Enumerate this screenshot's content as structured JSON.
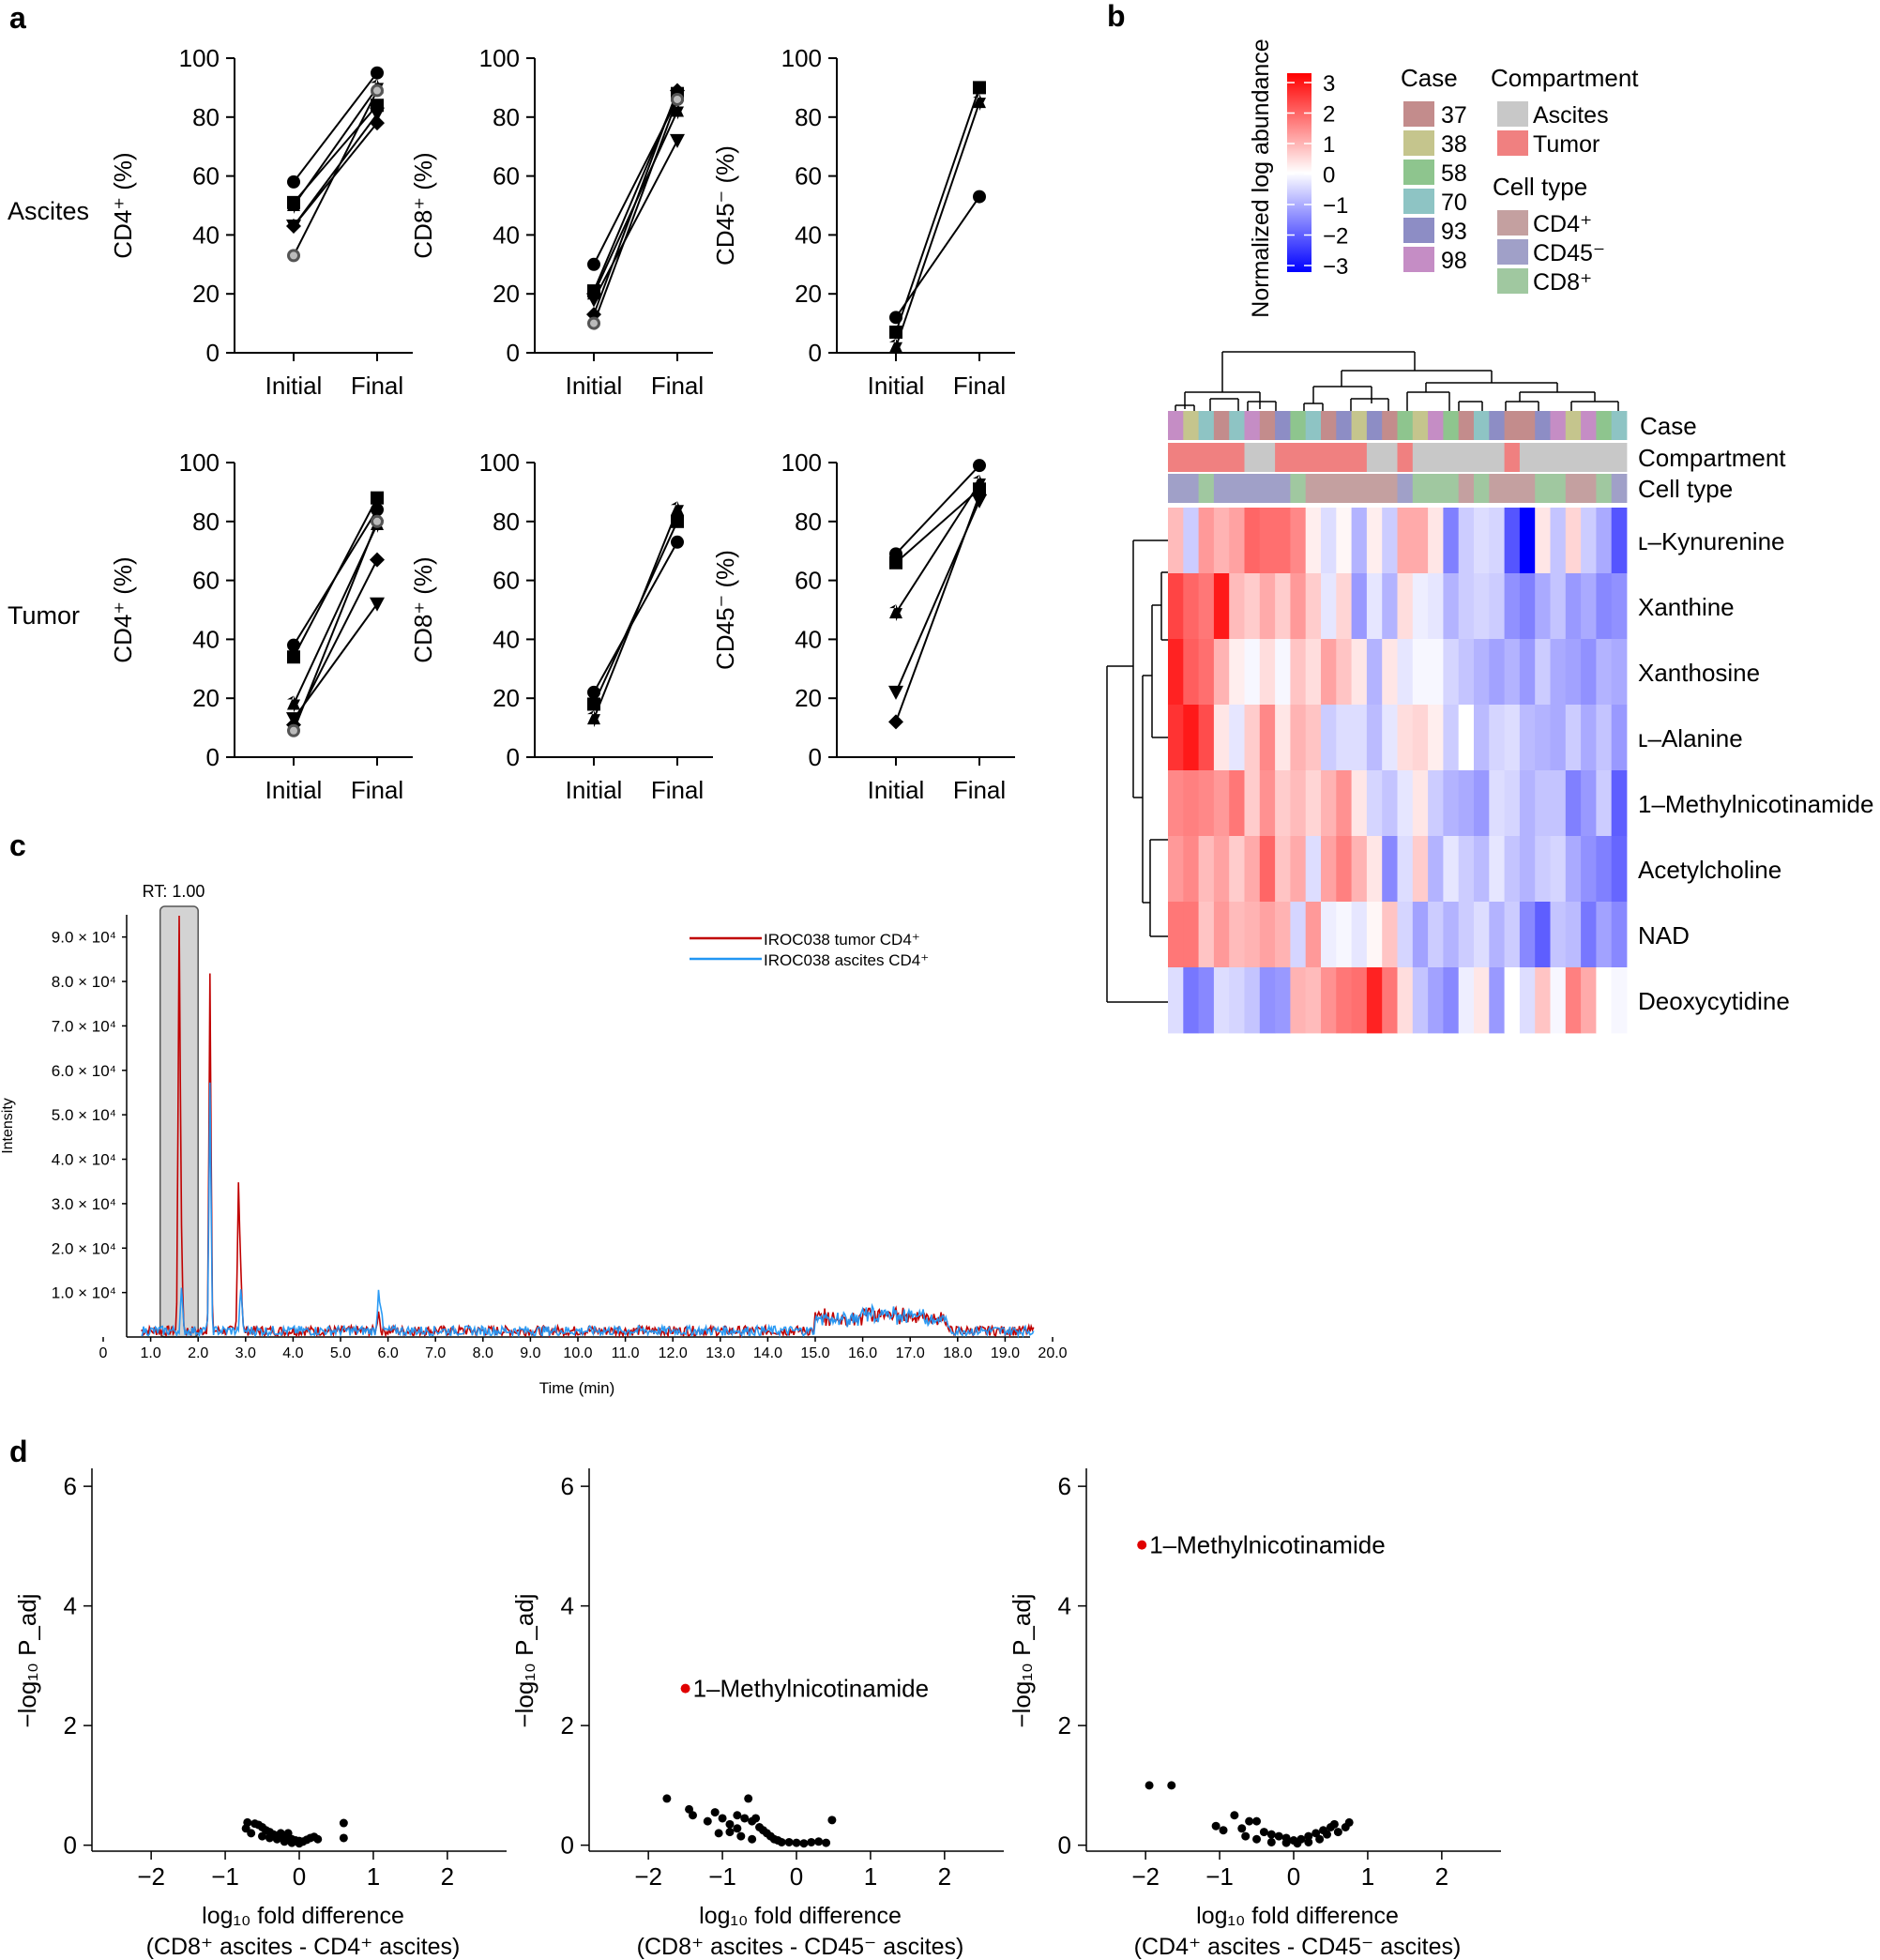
{
  "panel_labels": {
    "a": "a",
    "b": "b",
    "c": "c",
    "d": "d"
  },
  "chart_data": [
    {
      "type": "line",
      "panel": "a",
      "row_labels": [
        "Ascites",
        "Tumor"
      ],
      "x_categories": [
        "Initial",
        "Final"
      ],
      "ylim": [
        0,
        100
      ],
      "yticks": [
        "0",
        "20",
        "40",
        "60",
        "80",
        "100"
      ],
      "plots": [
        {
          "row": 0,
          "col": 0,
          "ylabel": "CD4⁺ (%)",
          "pairs": [
            [
              58,
              95
            ],
            [
              51,
              84
            ],
            [
              50,
              90
            ],
            [
              43,
              81
            ],
            [
              43,
              78
            ],
            [
              33,
              89
            ]
          ]
        },
        {
          "row": 0,
          "col": 1,
          "ylabel": "CD8⁺ (%)",
          "pairs": [
            [
              30,
              86
            ],
            [
              21,
              88
            ],
            [
              20,
              82
            ],
            [
              18,
              72
            ],
            [
              13,
              89
            ],
            [
              10,
              86
            ]
          ]
        },
        {
          "row": 0,
          "col": 2,
          "ylabel": "CD45⁻ (%)",
          "pairs": [
            [
              12,
              53
            ],
            [
              7,
              90
            ],
            [
              2,
              85
            ]
          ]
        },
        {
          "row": 1,
          "col": 0,
          "ylabel": "CD4⁺ (%)",
          "pairs": [
            [
              38,
              84
            ],
            [
              34,
              88
            ],
            [
              18,
              79
            ],
            [
              13,
              52
            ],
            [
              11,
              67
            ],
            [
              9,
              80
            ]
          ]
        },
        {
          "row": 1,
          "col": 1,
          "ylabel": "CD8⁺ (%)",
          "pairs": [
            [
              22,
              73
            ],
            [
              18,
              80
            ],
            [
              13,
              84
            ]
          ]
        },
        {
          "row": 1,
          "col": 2,
          "ylabel": "CD45⁻ (%)",
          "pairs": [
            [
              69,
              99
            ],
            [
              66,
              91
            ],
            [
              49,
              93
            ],
            [
              22,
              87
            ],
            [
              12,
              89
            ]
          ]
        }
      ]
    },
    {
      "type": "heatmap",
      "panel": "b",
      "colorbar": {
        "title": "Normalized log abundance",
        "ticks": [
          "3",
          "2",
          "1",
          "0",
          "−1",
          "−2",
          "−3"
        ],
        "colors": [
          "#ff0000",
          "#ffffff",
          "#0000ff"
        ]
      },
      "legend": {
        "case_title": "Case",
        "cases": [
          "37",
          "38",
          "58",
          "70",
          "93",
          "98"
        ],
        "case_colors": [
          "#c38c8c",
          "#c5c58d",
          "#8ec58e",
          "#8ec4c4",
          "#8d8dc5",
          "#c58dc5"
        ],
        "compartment_title": "Compartment",
        "compartments": [
          "Ascites",
          "Tumor"
        ],
        "compartment_colors": [
          "#c8c8c8",
          "#f08080"
        ],
        "celltype_title": "Cell type",
        "celltypes": [
          "CD4⁺",
          "CD45⁻",
          "CD8⁺"
        ],
        "celltype_colors": [
          "#c4a0a0",
          "#a0a0c8",
          "#a0c8a0"
        ]
      },
      "annotation_rows": [
        "Case",
        "Compartment",
        "Cell type"
      ],
      "rows": [
        "ʟ–Kynurenine",
        "Xanthine",
        "Xanthosine",
        "ʟ–Alanine",
        "1–Methylnicotinamide",
        "Acetylcholine",
        "NAD",
        "Deoxycytidine"
      ],
      "case_annotation": [
        5,
        1,
        3,
        0,
        3,
        5,
        0,
        4,
        2,
        3,
        0,
        4,
        1,
        4,
        0,
        2,
        1,
        5,
        2,
        0,
        3,
        4,
        0,
        0,
        4,
        5,
        1,
        5,
        2,
        3
      ],
      "compartment_annotation": [
        1,
        1,
        1,
        1,
        1,
        0,
        0,
        1,
        1,
        1,
        1,
        1,
        1,
        0,
        0,
        1,
        0,
        0,
        0,
        0,
        0,
        0,
        1,
        0,
        0,
        0,
        0,
        0,
        0,
        0
      ],
      "celltype_annotation": [
        1,
        1,
        2,
        1,
        1,
        1,
        1,
        1,
        2,
        0,
        0,
        0,
        0,
        0,
        0,
        1,
        2,
        2,
        2,
        0,
        2,
        0,
        0,
        0,
        2,
        2,
        0,
        0,
        2,
        1
      ],
      "values": [
        [
          0.8,
          -0.6,
          1.2,
          0.9,
          1.1,
          1.8,
          1.7,
          1.7,
          1.4,
          0.2,
          -0.4,
          0.1,
          -0.9,
          0.2,
          -0.6,
          1.0,
          1.0,
          0.3,
          -1.5,
          -0.6,
          -0.4,
          -0.5,
          -2.0,
          -3.0,
          0.3,
          -0.7,
          0.5,
          -0.6,
          -1.0,
          -2.0
        ],
        [
          2.2,
          1.8,
          1.6,
          2.7,
          0.8,
          0.6,
          1.0,
          0.6,
          1.2,
          0.6,
          -0.3,
          0.5,
          -1.2,
          -0.3,
          -0.9,
          0.4,
          -0.2,
          -0.3,
          -0.9,
          -0.6,
          -0.5,
          -0.6,
          -1.3,
          -1.5,
          -1.0,
          -0.7,
          -1.2,
          -1.0,
          -1.4,
          -1.3
        ],
        [
          2.6,
          1.9,
          1.7,
          0.9,
          0.2,
          -0.1,
          0.4,
          -0.1,
          0.7,
          0.4,
          1.1,
          0.7,
          0.3,
          -0.9,
          0.3,
          -0.3,
          -0.1,
          -0.1,
          -0.5,
          -0.7,
          -0.9,
          -1.1,
          -0.9,
          -1.2,
          -0.6,
          -1.0,
          -1.1,
          -1.3,
          -0.9,
          -1.0
        ],
        [
          2.4,
          2.7,
          2.1,
          0.3,
          -0.3,
          0.6,
          1.4,
          0.3,
          0.9,
          0.7,
          -0.6,
          -0.4,
          -0.4,
          -0.8,
          -0.3,
          0.4,
          0.5,
          0.2,
          -0.6,
          0.0,
          -0.8,
          -0.5,
          -0.4,
          -0.8,
          -0.9,
          -1.0,
          -0.6,
          -1.0,
          -0.7,
          -1.2
        ],
        [
          1.4,
          1.5,
          1.4,
          1.2,
          1.6,
          0.6,
          1.3,
          0.6,
          0.8,
          0.5,
          0.9,
          1.3,
          0.3,
          -0.5,
          -0.7,
          -0.3,
          0.3,
          -0.6,
          -0.9,
          -1.0,
          -1.2,
          -0.4,
          -0.5,
          -0.9,
          -0.7,
          -0.7,
          -1.5,
          -1.2,
          -0.6,
          -1.9
        ],
        [
          1.2,
          1.4,
          0.8,
          1.1,
          0.6,
          1.0,
          1.8,
          0.7,
          1.0,
          -0.4,
          1.1,
          1.5,
          0.9,
          0.3,
          -1.4,
          -0.4,
          0.6,
          -0.9,
          -0.3,
          -0.6,
          -0.8,
          -0.3,
          -0.7,
          -0.9,
          -0.6,
          -0.5,
          -1.0,
          -1.3,
          -1.5,
          -1.8
        ],
        [
          1.6,
          1.6,
          0.7,
          1.2,
          0.8,
          0.9,
          1.1,
          0.9,
          -0.5,
          1.2,
          -0.2,
          -0.1,
          -0.3,
          0.1,
          0.7,
          -0.5,
          -1.1,
          -0.6,
          -0.9,
          -0.6,
          -0.4,
          -0.9,
          -0.6,
          -1.4,
          -1.9,
          -0.7,
          -0.8,
          -1.6,
          -1.1,
          -1.4
        ],
        [
          -0.4,
          -1.6,
          -1.4,
          -0.4,
          -0.5,
          -0.7,
          -1.3,
          -1.2,
          0.9,
          0.8,
          1.3,
          1.6,
          1.7,
          2.6,
          1.6,
          0.4,
          -0.7,
          -1.1,
          -1.4,
          -0.2,
          0.3,
          -1.2,
          0.0,
          -0.4,
          0.7,
          -0.1,
          1.5,
          1.0,
          0.0,
          -0.1
        ]
      ]
    },
    {
      "type": "line",
      "panel": "c",
      "rt_label": "RT: 1.00",
      "xlabel": "Time (min)",
      "ylabel": "Intensity",
      "xlim": [
        0,
        20
      ],
      "xticks": [
        "0",
        "1.0",
        "2.0",
        "3.0",
        "4.0",
        "5.0",
        "6.0",
        "7.0",
        "8.0",
        "9.0",
        "10.0",
        "11.0",
        "12.0",
        "13.0",
        "14.0",
        "15.0",
        "16.0",
        "17.0",
        "18.0",
        "19.0",
        "20.0"
      ],
      "ylim": [
        0,
        95000
      ],
      "ytick_values": [
        10000,
        20000,
        30000,
        40000,
        50000,
        60000,
        70000,
        80000,
        90000
      ],
      "ytick_labels": [
        "1.0 × 10⁴",
        "2.0 × 10⁴",
        "3.0 × 10⁴",
        "4.0 × 10⁴",
        "5.0 × 10⁴",
        "6.0 × 10⁴",
        "7.0 × 10⁴",
        "8.0 × 10⁴",
        "9.0 × 10⁴"
      ],
      "highlight_range": [
        1.2,
        2.0
      ],
      "series": [
        {
          "name": "IROC038 tumor CD4⁺",
          "color": "#c00000",
          "peaks": [
            [
              1.6,
              93000
            ],
            [
              1.65,
              18000
            ],
            [
              2.25,
              80000
            ],
            [
              2.85,
              33000
            ],
            [
              2.9,
              13000
            ],
            [
              5.8,
              5000
            ]
          ]
        },
        {
          "name": "IROC038 ascites CD4⁺",
          "color": "#2196f3",
          "peaks": [
            [
              1.65,
              9000
            ],
            [
              2.25,
              55000
            ],
            [
              2.9,
              10000
            ],
            [
              5.8,
              9500
            ],
            [
              5.85,
              5000
            ]
          ]
        }
      ]
    },
    {
      "type": "scatter",
      "panel": "d",
      "xlim": [
        -2.8,
        2.8
      ],
      "ylim": [
        -0.1,
        6.3
      ],
      "xticks": [
        "−2",
        "−1",
        "0",
        "1",
        "2"
      ],
      "yticks": [
        "0",
        "2",
        "4",
        "6"
      ],
      "ylabel": "−log₁₀ P_adj",
      "plots": [
        {
          "xlabel_1": "log₁₀ fold difference",
          "xlabel_2": "(CD8⁺ ascites - CD4⁺ ascites)",
          "points": [
            [
              -0.7,
              0.38
            ],
            [
              -0.6,
              0.36
            ],
            [
              -0.55,
              0.34
            ],
            [
              -0.5,
              0.3
            ],
            [
              -0.72,
              0.28
            ],
            [
              -0.45,
              0.25
            ],
            [
              -0.4,
              0.22
            ],
            [
              -0.65,
              0.2
            ],
            [
              -0.35,
              0.18
            ],
            [
              -0.3,
              0.16
            ],
            [
              -0.25,
              0.2
            ],
            [
              -0.2,
              0.14
            ],
            [
              -0.15,
              0.12
            ],
            [
              -0.1,
              0.1
            ],
            [
              -0.05,
              0.08
            ],
            [
              0.0,
              0.07
            ],
            [
              0.05,
              0.06
            ],
            [
              0.1,
              0.09
            ],
            [
              0.15,
              0.12
            ],
            [
              0.2,
              0.14
            ],
            [
              -0.3,
              0.1
            ],
            [
              -0.2,
              0.06
            ],
            [
              -0.1,
              0.04
            ],
            [
              0.0,
              0.03
            ],
            [
              -0.5,
              0.15
            ],
            [
              -0.4,
              0.12
            ],
            [
              0.6,
              0.37
            ],
            [
              0.6,
              0.12
            ],
            [
              0.25,
              0.1
            ],
            [
              -0.15,
              0.2
            ]
          ],
          "highlight": null
        },
        {
          "xlabel_1": "log₁₀ fold difference",
          "xlabel_2": "(CD8⁺ ascites - CD45⁻ ascites)",
          "points": [
            [
              -1.75,
              0.78
            ],
            [
              -1.45,
              0.6
            ],
            [
              -1.4,
              0.5
            ],
            [
              -1.2,
              0.4
            ],
            [
              -1.1,
              0.55
            ],
            [
              -1.0,
              0.45
            ],
            [
              -0.9,
              0.35
            ],
            [
              -0.8,
              0.5
            ],
            [
              -0.7,
              0.45
            ],
            [
              -0.65,
              0.78
            ],
            [
              -0.6,
              0.4
            ],
            [
              -0.55,
              0.45
            ],
            [
              -0.5,
              0.3
            ],
            [
              -0.45,
              0.25
            ],
            [
              -0.4,
              0.2
            ],
            [
              -0.35,
              0.15
            ],
            [
              -0.3,
              0.1
            ],
            [
              -0.25,
              0.08
            ],
            [
              -0.2,
              0.05
            ],
            [
              -0.1,
              0.05
            ],
            [
              0.0,
              0.04
            ],
            [
              0.1,
              0.03
            ],
            [
              0.2,
              0.05
            ],
            [
              0.3,
              0.06
            ],
            [
              0.4,
              0.04
            ],
            [
              0.48,
              0.42
            ],
            [
              -0.9,
              0.22
            ],
            [
              -0.75,
              0.15
            ],
            [
              -0.6,
              0.1
            ],
            [
              -1.05,
              0.2
            ],
            [
              -0.8,
              0.28
            ]
          ],
          "highlight": {
            "x": -1.5,
            "y": 2.62,
            "label": "1–Methylnicotinamide",
            "color": "#e00000"
          }
        },
        {
          "xlabel_1": "log₁₀ fold difference",
          "xlabel_2": "(CD4⁺ ascites - CD45⁻ ascites)",
          "points": [
            [
              -1.95,
              1.0
            ],
            [
              -1.65,
              1.0
            ],
            [
              -1.05,
              0.32
            ],
            [
              -0.95,
              0.25
            ],
            [
              -0.8,
              0.5
            ],
            [
              -0.7,
              0.28
            ],
            [
              -0.6,
              0.4
            ],
            [
              -0.5,
              0.4
            ],
            [
              -0.4,
              0.22
            ],
            [
              -0.3,
              0.18
            ],
            [
              -0.2,
              0.15
            ],
            [
              -0.1,
              0.12
            ],
            [
              0.0,
              0.08
            ],
            [
              0.1,
              0.1
            ],
            [
              0.2,
              0.15
            ],
            [
              0.3,
              0.2
            ],
            [
              0.4,
              0.25
            ],
            [
              0.5,
              0.3
            ],
            [
              0.55,
              0.35
            ],
            [
              0.7,
              0.3
            ],
            [
              0.75,
              0.38
            ],
            [
              -0.5,
              0.1
            ],
            [
              -0.3,
              0.05
            ],
            [
              -0.1,
              0.04
            ],
            [
              0.05,
              0.03
            ],
            [
              0.2,
              0.05
            ],
            [
              0.35,
              0.1
            ],
            [
              0.45,
              0.18
            ],
            [
              -0.65,
              0.15
            ],
            [
              0.6,
              0.22
            ]
          ],
          "highlight": {
            "x": -2.05,
            "y": 5.02,
            "label": "1–Methylnicotinamide",
            "color": "#e00000"
          }
        }
      ]
    }
  ]
}
